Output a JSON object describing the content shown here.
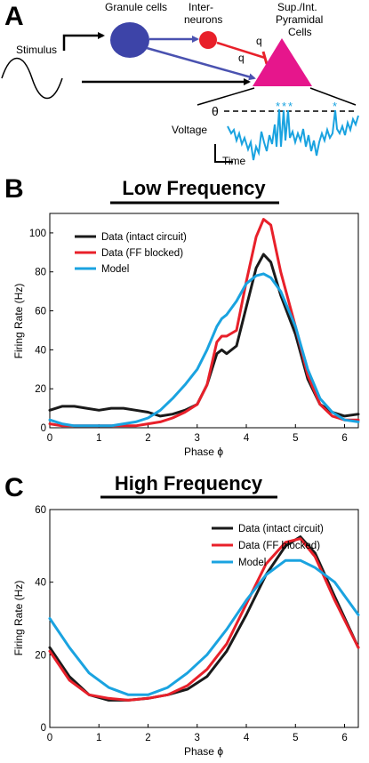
{
  "panels": {
    "a": "A",
    "b": "B",
    "c": "C"
  },
  "diagram": {
    "stimulus": "Stimulus",
    "granule_cells": "Granule cells",
    "interneurons_line1": "Inter-",
    "interneurons_line2": "neurons",
    "pyramidal_line1": "Sup./Int.",
    "pyramidal_line2": "Pyramidal",
    "pyramidal_line3": "Cells",
    "q_top": "q",
    "q_bottom": "q",
    "theta": "θ",
    "voltage": "Voltage",
    "time": "Time",
    "colors": {
      "granule": "#3d44a8",
      "interneuron": "#e8202a",
      "pyramidal": "#e6168c",
      "trace": "#1aa3e0",
      "arrow_blue": "#4a52b0"
    }
  },
  "chart_data": [
    {
      "type": "line",
      "title": "Low Frequency",
      "xlabel": "Phase ϕ",
      "ylabel": "Firing Rate (Hz)",
      "xlim": [
        0,
        6.28
      ],
      "ylim": [
        0,
        110
      ],
      "xticks": [
        "0",
        "1",
        "2",
        "3",
        "4",
        "5",
        "6"
      ],
      "yticks": [
        "0",
        "20",
        "40",
        "60",
        "80",
        "100"
      ],
      "legend_position": "top-left",
      "x": [
        0,
        0.25,
        0.5,
        0.75,
        1.0,
        1.25,
        1.5,
        1.75,
        2.0,
        2.25,
        2.5,
        2.75,
        3.0,
        3.2,
        3.4,
        3.5,
        3.6,
        3.8,
        4.0,
        4.2,
        4.35,
        4.5,
        4.7,
        5.0,
        5.25,
        5.5,
        5.75,
        6.0,
        6.28
      ],
      "series": [
        {
          "name": "Data (intact circuit)",
          "color": "#1a1a1a",
          "values": [
            9,
            11,
            11,
            10,
            9,
            10,
            10,
            9,
            8,
            6,
            7,
            9,
            12,
            22,
            38,
            40,
            38,
            42,
            62,
            82,
            89,
            85,
            68,
            48,
            25,
            12,
            8,
            6,
            7
          ]
        },
        {
          "name": "Data (FF blocked)",
          "color": "#e8202a",
          "values": [
            2,
            1,
            1,
            1,
            1,
            1,
            1,
            1,
            2,
            3,
            5,
            8,
            12,
            22,
            44,
            47,
            47,
            50,
            75,
            98,
            107,
            104,
            80,
            52,
            27,
            12,
            6,
            4,
            4
          ]
        },
        {
          "name": "Model",
          "color": "#1aa3e0",
          "values": [
            4,
            2,
            1,
            1,
            1,
            1,
            2,
            3,
            5,
            9,
            15,
            22,
            30,
            40,
            52,
            56,
            58,
            65,
            74,
            78,
            79,
            77,
            70,
            52,
            30,
            15,
            8,
            4,
            3
          ]
        }
      ]
    },
    {
      "type": "line",
      "title": "High Frequency",
      "xlabel": "Phase ϕ",
      "ylabel": "Firing Rate (Hz)",
      "xlim": [
        0,
        6.28
      ],
      "ylim": [
        0,
        60
      ],
      "xticks": [
        "0",
        "1",
        "2",
        "3",
        "4",
        "5",
        "6"
      ],
      "yticks": [
        "0",
        "20",
        "40",
        "60"
      ],
      "legend_position": "top-right",
      "x": [
        0,
        0.4,
        0.8,
        1.2,
        1.6,
        2.0,
        2.4,
        2.8,
        3.2,
        3.6,
        4.0,
        4.4,
        4.8,
        5.1,
        5.4,
        5.8,
        6.28
      ],
      "series": [
        {
          "name": "Data (intact circuit)",
          "color": "#1a1a1a",
          "values": [
            22,
            14,
            9,
            7.5,
            7.5,
            8,
            9,
            10.5,
            14,
            21,
            31,
            42,
            50,
            52.5,
            48,
            36,
            22
          ]
        },
        {
          "name": "Data (FF blocked)",
          "color": "#e8202a",
          "values": [
            21,
            13,
            9,
            8,
            7.5,
            8,
            9,
            11.5,
            16,
            23,
            34,
            45,
            51,
            52,
            47,
            35,
            22
          ]
        },
        {
          "name": "Model",
          "color": "#1aa3e0",
          "values": [
            30,
            22,
            15,
            11,
            9,
            9,
            11,
            15,
            20,
            27,
            35,
            42,
            46,
            46,
            44,
            40,
            31
          ]
        }
      ]
    }
  ]
}
